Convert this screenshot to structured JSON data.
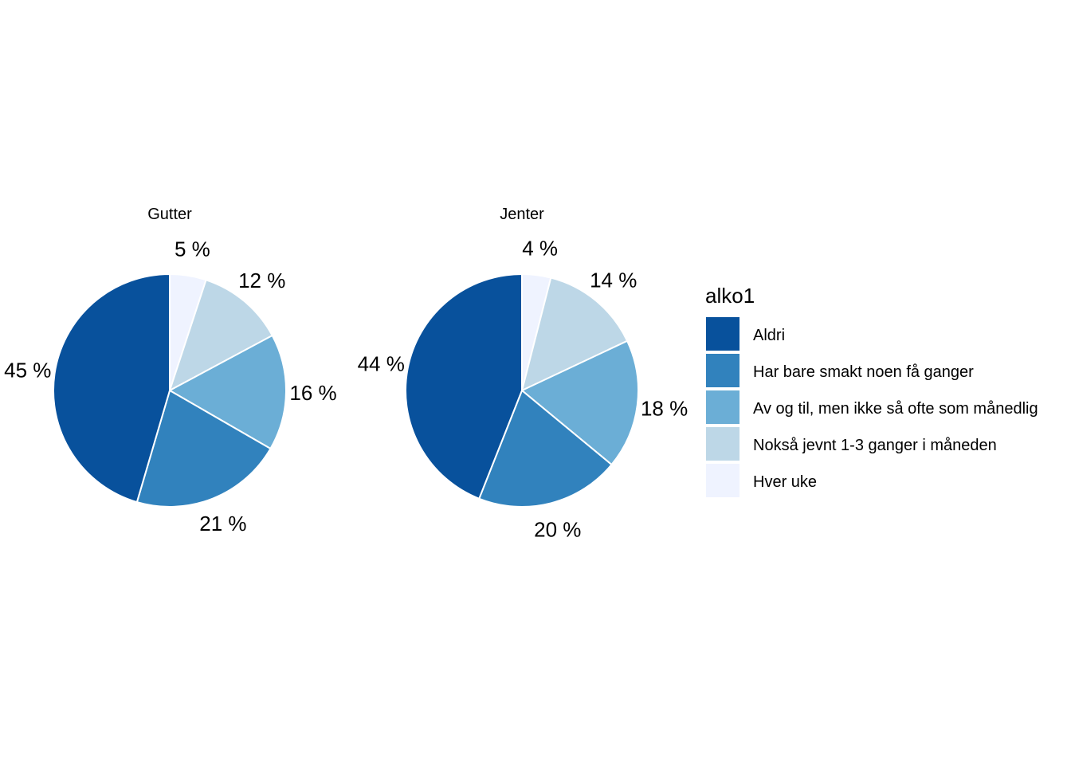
{
  "chart_data": {
    "type": "pie",
    "legend": {
      "title": "alko1",
      "position": "right"
    },
    "categories": [
      "Aldri",
      "Har bare smakt noen få ganger",
      "Av og til, men ikke så ofte som månedlig",
      "Nokså jevnt 1-3 ganger i måneden",
      "Hver uke"
    ],
    "colors": [
      "#08519C",
      "#3182BD",
      "#6BAED6",
      "#BDD7E7",
      "#EFF3FF"
    ],
    "facets": [
      {
        "title": "Gutter",
        "values": [
          45,
          21,
          16,
          12,
          5
        ],
        "labels": [
          "45 %",
          "21 %",
          "16 %",
          "12 %",
          "5 %"
        ]
      },
      {
        "title": "Jenter",
        "values": [
          44,
          20,
          18,
          14,
          4
        ],
        "labels": [
          "44 %",
          "20 %",
          "18 %",
          "14 %",
          "4 %"
        ]
      }
    ]
  }
}
